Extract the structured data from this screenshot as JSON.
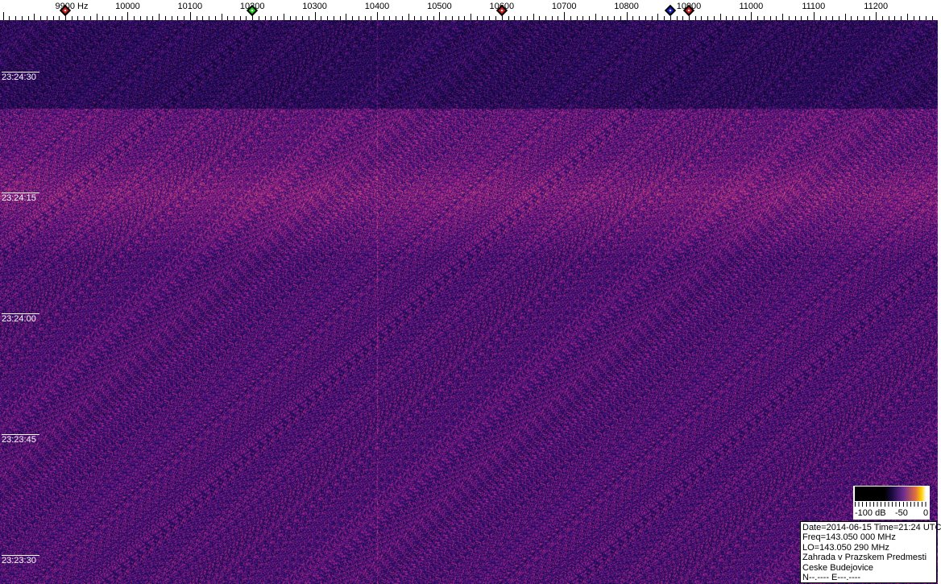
{
  "frequency_axis": {
    "unit_label": "9900 Hz",
    "labels": [
      "10000",
      "10100",
      "10200",
      "10300",
      "10400",
      "10500",
      "10600",
      "10700",
      "10800",
      "10900",
      "11000",
      "11100",
      "11200"
    ],
    "label_values": [
      10000,
      10100,
      10200,
      10300,
      10400,
      10500,
      10600,
      10700,
      10800,
      10900,
      11000,
      11100,
      11200
    ],
    "first_value": 9900
  },
  "markers": [
    {
      "freq": 9900,
      "color": "#cc2020"
    },
    {
      "freq": 10200,
      "color": "#20cc20"
    },
    {
      "freq": 10600,
      "color": "#cc2020"
    },
    {
      "freq": 10870,
      "color": "#2020cc"
    },
    {
      "freq": 10900,
      "color": "#cc2020"
    }
  ],
  "time_labels": [
    "23:24:30",
    "23:24:15",
    "23:24:00",
    "23:23:45",
    "23:23:30"
  ],
  "colorbar": {
    "min_label": "-100 dB",
    "mid_label": "-50",
    "max_label": "0"
  },
  "info": {
    "line1": "Date=2014-06-15 Time=21:24 UTC",
    "line2": "Freq=143.050 000 MHz",
    "line3": "LO=143.050 290 MHz",
    "line4": "Zahrada v Prazskem Predmesti",
    "line5": "Ceske Budejovice",
    "line6": "N--.---- E---.----"
  },
  "colors": {
    "background": "#2a0f6a",
    "signal": "#c04090"
  }
}
